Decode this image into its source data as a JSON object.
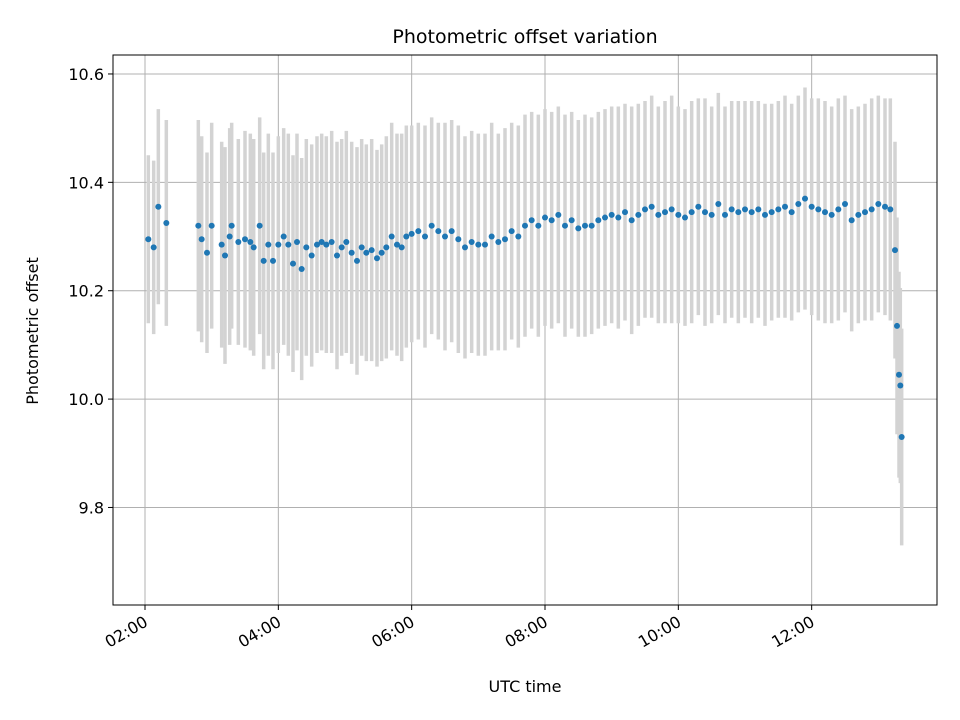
{
  "chart_data": {
    "type": "scatter",
    "title": "Photometric offset variation",
    "xlabel": "UTC time",
    "ylabel": "Photometric offset",
    "x_unit": "hours UTC",
    "xlim": [
      1.52,
      13.88
    ],
    "ylim": [
      9.62,
      10.635
    ],
    "x_ticks": [
      2,
      4,
      6,
      8,
      10,
      12
    ],
    "x_tick_labels": [
      "02:00",
      "04:00",
      "06:00",
      "08:00",
      "10:00",
      "12:00"
    ],
    "y_ticks": [
      9.8,
      10.0,
      10.2,
      10.4,
      10.6
    ],
    "y_tick_labels": [
      "9.8",
      "10.0",
      "10.2",
      "10.4",
      "10.6"
    ],
    "grid": true,
    "colors": {
      "point": "#1f77b4",
      "error_bar": "#d3d3d3",
      "grid": "#b0b0b0"
    },
    "series": [
      {
        "x": [
          2.05,
          2.13,
          2.2,
          2.32,
          2.8,
          2.85,
          2.93,
          3.0,
          3.15,
          3.2,
          3.27,
          3.3,
          3.4,
          3.5,
          3.58,
          3.63,
          3.72,
          3.78,
          3.85,
          3.92,
          4.0,
          4.08,
          4.15,
          4.22,
          4.28,
          4.35,
          4.42,
          4.5,
          4.58,
          4.65,
          4.72,
          4.8,
          4.88,
          4.95,
          5.02,
          5.1,
          5.18,
          5.25,
          5.32,
          5.4,
          5.48,
          5.55,
          5.62,
          5.7,
          5.78,
          5.85,
          5.92,
          6.0,
          6.1,
          6.2,
          6.3,
          6.4,
          6.5,
          6.6,
          6.7,
          6.8,
          6.9,
          7.0,
          7.1,
          7.2,
          7.3,
          7.4,
          7.5,
          7.6,
          7.7,
          7.8,
          7.9,
          8.0,
          8.1,
          8.2,
          8.3,
          8.4,
          8.5,
          8.6,
          8.7,
          8.8,
          8.9,
          9.0,
          9.1,
          9.2,
          9.3,
          9.4,
          9.5,
          9.6,
          9.7,
          9.8,
          9.9,
          10.0,
          10.1,
          10.2,
          10.3,
          10.4,
          10.5,
          10.6,
          10.7,
          10.8,
          10.9,
          11.0,
          11.1,
          11.2,
          11.3,
          11.4,
          11.5,
          11.6,
          11.7,
          11.8,
          11.9,
          12.0,
          12.1,
          12.2,
          12.3,
          12.4,
          12.5,
          12.6,
          12.7,
          12.8,
          12.9,
          13.0,
          13.1,
          13.18,
          13.25,
          13.28,
          13.31,
          13.33,
          13.35
        ],
        "y": [
          10.295,
          10.28,
          10.355,
          10.325,
          10.32,
          10.295,
          10.27,
          10.32,
          10.285,
          10.265,
          10.3,
          10.32,
          10.29,
          10.295,
          10.29,
          10.28,
          10.32,
          10.255,
          10.285,
          10.255,
          10.285,
          10.3,
          10.285,
          10.25,
          10.29,
          10.24,
          10.28,
          10.265,
          10.285,
          10.29,
          10.285,
          10.29,
          10.265,
          10.28,
          10.29,
          10.27,
          10.255,
          10.28,
          10.27,
          10.275,
          10.26,
          10.27,
          10.28,
          10.3,
          10.285,
          10.28,
          10.3,
          10.305,
          10.31,
          10.3,
          10.32,
          10.31,
          10.3,
          10.31,
          10.295,
          10.28,
          10.29,
          10.285,
          10.285,
          10.3,
          10.29,
          10.295,
          10.31,
          10.3,
          10.32,
          10.33,
          10.32,
          10.335,
          10.33,
          10.34,
          10.32,
          10.33,
          10.315,
          10.32,
          10.32,
          10.33,
          10.335,
          10.34,
          10.335,
          10.345,
          10.33,
          10.34,
          10.35,
          10.355,
          10.34,
          10.345,
          10.35,
          10.34,
          10.335,
          10.345,
          10.355,
          10.345,
          10.34,
          10.36,
          10.34,
          10.35,
          10.345,
          10.35,
          10.345,
          10.35,
          10.34,
          10.345,
          10.35,
          10.355,
          10.345,
          10.36,
          10.37,
          10.355,
          10.35,
          10.345,
          10.34,
          10.35,
          10.36,
          10.33,
          10.34,
          10.345,
          10.35,
          10.36,
          10.355,
          10.35,
          10.275,
          10.135,
          10.045,
          10.025,
          9.93
        ],
        "err": [
          0.155,
          0.16,
          0.18,
          0.19,
          0.195,
          0.19,
          0.185,
          0.19,
          0.19,
          0.2,
          0.2,
          0.19,
          0.19,
          0.2,
          0.2,
          0.2,
          0.2,
          0.2,
          0.205,
          0.2,
          0.2,
          0.2,
          0.205,
          0.2,
          0.2,
          0.205,
          0.2,
          0.205,
          0.2,
          0.2,
          0.2,
          0.205,
          0.21,
          0.2,
          0.205,
          0.205,
          0.21,
          0.2,
          0.2,
          0.205,
          0.2,
          0.2,
          0.205,
          0.21,
          0.205,
          0.21,
          0.205,
          0.2,
          0.2,
          0.205,
          0.2,
          0.2,
          0.21,
          0.205,
          0.21,
          0.205,
          0.205,
          0.205,
          0.205,
          0.21,
          0.2,
          0.205,
          0.2,
          0.205,
          0.205,
          0.2,
          0.205,
          0.2,
          0.2,
          0.2,
          0.205,
          0.2,
          0.2,
          0.205,
          0.2,
          0.2,
          0.2,
          0.2,
          0.205,
          0.2,
          0.21,
          0.205,
          0.2,
          0.205,
          0.2,
          0.205,
          0.21,
          0.2,
          0.2,
          0.205,
          0.2,
          0.21,
          0.2,
          0.205,
          0.2,
          0.2,
          0.205,
          0.2,
          0.205,
          0.2,
          0.205,
          0.2,
          0.2,
          0.205,
          0.2,
          0.2,
          0.205,
          0.2,
          0.205,
          0.205,
          0.2,
          0.205,
          0.2,
          0.205,
          0.2,
          0.2,
          0.205,
          0.2,
          0.2,
          0.205,
          0.2,
          0.2,
          0.19,
          0.18,
          0.2
        ]
      }
    ]
  }
}
